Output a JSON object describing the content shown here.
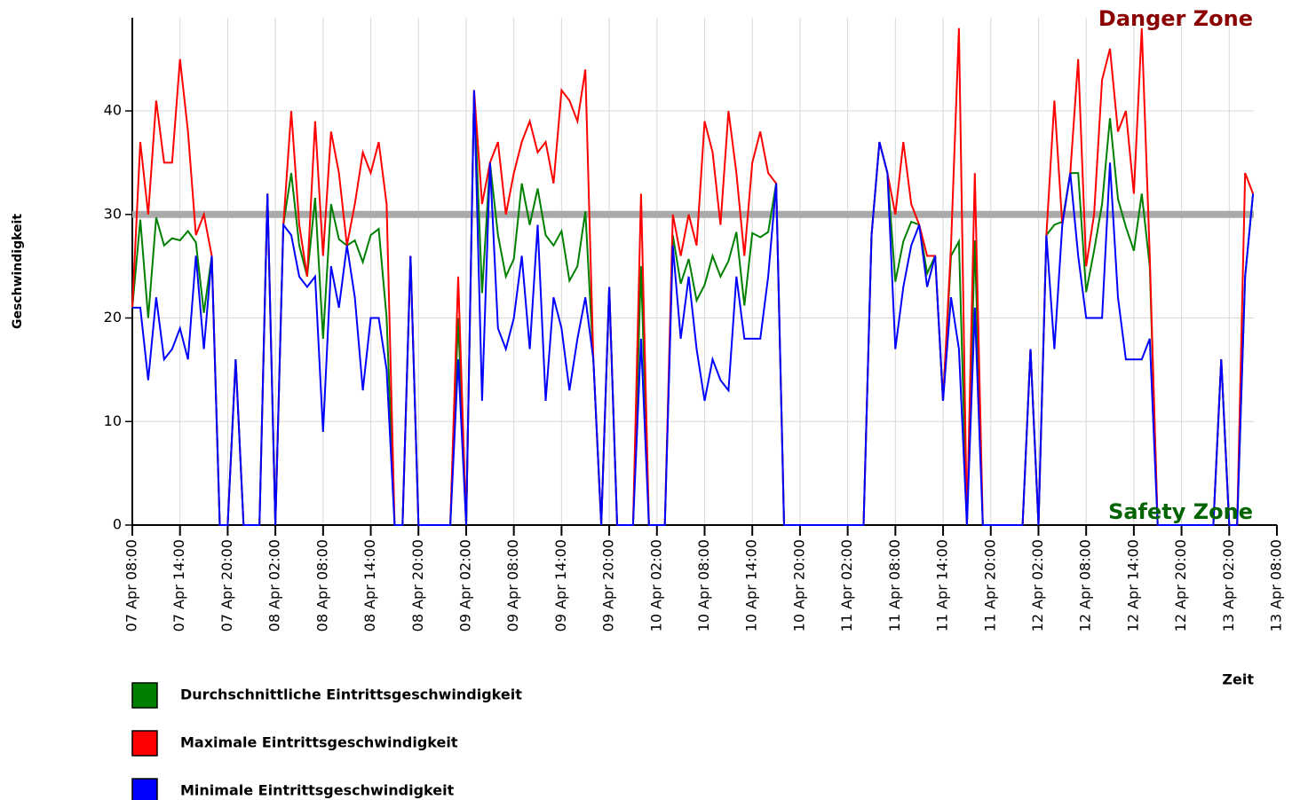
{
  "chart_data": {
    "type": "line",
    "y_label": "Geschwindigkeit",
    "x_label": "Zeit",
    "annotations": [
      {
        "text": "Danger Zone",
        "color": "#8b0000"
      },
      {
        "text": "Safety Zone",
        "color": "#006400"
      }
    ],
    "threshold": {
      "value": 30,
      "color": "#aaaaaa"
    },
    "x": [
      "07 Apr 08:00",
      "07 Apr 09:00",
      "07 Apr 10:00",
      "07 Apr 11:00",
      "07 Apr 12:00",
      "07 Apr 13:00",
      "07 Apr 14:00",
      "07 Apr 15:00",
      "07 Apr 16:00",
      "07 Apr 17:00",
      "07 Apr 18:00",
      "07 Apr 19:00",
      "07 Apr 20:00",
      "07 Apr 21:00",
      "07 Apr 22:00",
      "07 Apr 23:00",
      "08 Apr 00:00",
      "08 Apr 01:00",
      "08 Apr 02:00",
      "08 Apr 03:00",
      "08 Apr 04:00",
      "08 Apr 05:00",
      "08 Apr 06:00",
      "08 Apr 07:00",
      "08 Apr 08:00",
      "08 Apr 09:00",
      "08 Apr 10:00",
      "08 Apr 11:00",
      "08 Apr 12:00",
      "08 Apr 13:00",
      "08 Apr 14:00",
      "08 Apr 15:00",
      "08 Apr 16:00",
      "08 Apr 17:00",
      "08 Apr 18:00",
      "08 Apr 19:00",
      "08 Apr 20:00",
      "08 Apr 21:00",
      "08 Apr 22:00",
      "08 Apr 23:00",
      "09 Apr 00:00",
      "09 Apr 01:00",
      "09 Apr 02:00",
      "09 Apr 03:00",
      "09 Apr 04:00",
      "09 Apr 05:00",
      "09 Apr 06:00",
      "09 Apr 07:00",
      "09 Apr 08:00",
      "09 Apr 09:00",
      "09 Apr 10:00",
      "09 Apr 11:00",
      "09 Apr 12:00",
      "09 Apr 13:00",
      "09 Apr 14:00",
      "09 Apr 15:00",
      "09 Apr 16:00",
      "09 Apr 17:00",
      "09 Apr 18:00",
      "09 Apr 19:00",
      "09 Apr 20:00",
      "09 Apr 21:00",
      "09 Apr 22:00",
      "09 Apr 23:00",
      "10 Apr 00:00",
      "10 Apr 01:00",
      "10 Apr 02:00",
      "10 Apr 03:00",
      "10 Apr 04:00",
      "10 Apr 05:00",
      "10 Apr 06:00",
      "10 Apr 07:00",
      "10 Apr 08:00",
      "10 Apr 09:00",
      "10 Apr 10:00",
      "10 Apr 11:00",
      "10 Apr 12:00",
      "10 Apr 13:00",
      "10 Apr 14:00",
      "10 Apr 15:00",
      "10 Apr 16:00",
      "10 Apr 17:00",
      "10 Apr 18:00",
      "10 Apr 19:00",
      "10 Apr 20:00",
      "10 Apr 21:00",
      "10 Apr 22:00",
      "10 Apr 23:00",
      "11 Apr 00:00",
      "11 Apr 01:00",
      "11 Apr 02:00",
      "11 Apr 03:00",
      "11 Apr 04:00",
      "11 Apr 05:00",
      "11 Apr 06:00",
      "11 Apr 07:00",
      "11 Apr 08:00",
      "11 Apr 09:00",
      "11 Apr 10:00",
      "11 Apr 11:00",
      "11 Apr 12:00",
      "11 Apr 13:00",
      "11 Apr 14:00",
      "11 Apr 15:00",
      "11 Apr 16:00",
      "11 Apr 17:00",
      "11 Apr 18:00",
      "11 Apr 19:00",
      "11 Apr 20:00",
      "11 Apr 21:00",
      "11 Apr 22:00",
      "11 Apr 23:00",
      "12 Apr 00:00",
      "12 Apr 01:00",
      "12 Apr 02:00",
      "12 Apr 03:00",
      "12 Apr 04:00",
      "12 Apr 05:00",
      "12 Apr 06:00",
      "12 Apr 07:00",
      "12 Apr 08:00",
      "12 Apr 09:00",
      "12 Apr 10:00",
      "12 Apr 11:00",
      "12 Apr 12:00",
      "12 Apr 13:00",
      "12 Apr 14:00",
      "12 Apr 15:00",
      "12 Apr 16:00",
      "12 Apr 17:00",
      "12 Apr 18:00",
      "12 Apr 19:00",
      "12 Apr 20:00",
      "12 Apr 21:00",
      "12 Apr 22:00",
      "12 Apr 23:00",
      "13 Apr 00:00",
      "13 Apr 01:00",
      "13 Apr 02:00",
      "13 Apr 03:00",
      "13 Apr 04:00",
      "13 Apr 05:00"
    ],
    "series": [
      {
        "name": "Durchschnittliche Eintrittsgeschwindigkeit",
        "color": "#008000",
        "values": [
          21,
          29.5,
          20,
          29.7,
          27,
          27.7,
          27.5,
          28.4,
          27.3,
          20.5,
          26,
          0,
          0,
          16,
          0,
          0,
          0,
          32,
          0,
          29,
          34,
          27,
          24,
          31.6,
          18,
          31,
          27.6,
          27,
          27.5,
          25.4,
          28,
          28.6,
          20,
          0,
          0,
          26,
          0,
          0,
          0,
          0,
          0,
          20,
          0,
          42,
          22.4,
          35,
          28,
          24,
          25.7,
          33,
          29,
          32.5,
          28,
          27,
          28.4,
          23.6,
          25,
          30.3,
          16,
          0,
          23,
          0,
          0,
          0,
          25,
          0,
          0,
          0,
          28,
          23.3,
          25.7,
          21.7,
          23.2,
          26,
          24,
          25.5,
          28.3,
          21.2,
          28.2,
          27.8,
          28.3,
          33,
          0,
          0,
          0,
          0,
          0,
          0,
          0,
          0,
          0,
          0,
          0,
          28,
          37,
          34,
          23.5,
          27.4,
          29.3,
          29,
          24.3,
          26,
          12,
          26,
          27.4,
          0,
          27.5,
          0,
          0,
          0,
          0,
          0,
          0,
          17,
          0,
          28,
          29,
          29.3,
          34,
          34,
          22.5,
          26.5,
          31,
          39.3,
          31.5,
          28.8,
          26.5,
          32,
          25,
          0,
          0,
          0,
          0,
          0,
          0,
          0,
          0,
          16,
          0,
          0,
          24,
          32
        ]
      },
      {
        "name": "Maximale Eintrittsgeschwindigkeit",
        "color": "#ff0000",
        "values": [
          21,
          37,
          30,
          41,
          35,
          35,
          45,
          38,
          28,
          30,
          26,
          0,
          0,
          16,
          0,
          0,
          0,
          32,
          0,
          29,
          40,
          29,
          24,
          39,
          26,
          38,
          34,
          27,
          31,
          36,
          34,
          37,
          31,
          0,
          0,
          26,
          0,
          0,
          0,
          0,
          0,
          24,
          0,
          42,
          31,
          35,
          37,
          30,
          34,
          37,
          39,
          36,
          37,
          33,
          42,
          41,
          39,
          44,
          16,
          0,
          23,
          0,
          0,
          0,
          32,
          0,
          0,
          0,
          30,
          26,
          30,
          27,
          39,
          36,
          29,
          40,
          34,
          26,
          35,
          38,
          34,
          33,
          0,
          0,
          0,
          0,
          0,
          0,
          0,
          0,
          0,
          0,
          0,
          28,
          37,
          34,
          30,
          37,
          31,
          29,
          26,
          26,
          12,
          27,
          48,
          0,
          34,
          0,
          0,
          0,
          0,
          0,
          0,
          17,
          0,
          28,
          41,
          29,
          34,
          45,
          25,
          30,
          43,
          46,
          38,
          40,
          32,
          48,
          26,
          0,
          0,
          0,
          0,
          0,
          0,
          0,
          0,
          16,
          0,
          0,
          34,
          32
        ]
      },
      {
        "name": "Minimale Eintrittsgeschwindigkeit",
        "color": "#0000ff",
        "values": [
          21,
          21,
          14,
          22,
          16,
          17,
          19,
          16,
          26,
          17,
          26,
          0,
          0,
          16,
          0,
          0,
          0,
          32,
          0,
          29,
          28,
          24,
          23,
          24,
          9,
          25,
          21,
          27,
          22,
          13,
          20,
          20,
          15,
          0,
          0,
          26,
          0,
          0,
          0,
          0,
          0,
          16,
          0,
          42,
          12,
          35,
          19,
          17,
          20,
          26,
          17,
          29,
          12,
          22,
          19,
          13,
          18,
          22,
          16,
          0,
          23,
          0,
          0,
          0,
          18,
          0,
          0,
          0,
          27,
          18,
          24,
          17,
          12,
          16,
          14,
          13,
          24,
          18,
          18,
          18,
          24,
          33,
          0,
          0,
          0,
          0,
          0,
          0,
          0,
          0,
          0,
          0,
          0,
          28,
          37,
          34,
          17,
          23,
          27,
          29,
          23,
          26,
          12,
          22,
          17,
          0,
          21,
          0,
          0,
          0,
          0,
          0,
          0,
          17,
          0,
          28,
          17,
          29,
          34,
          26,
          20,
          20,
          20,
          35,
          22,
          16,
          16,
          16,
          18,
          0,
          0,
          0,
          0,
          0,
          0,
          0,
          0,
          16,
          0,
          0,
          24,
          32
        ]
      }
    ],
    "xlim": [
      "07 Apr 08:00",
      "13 Apr 08:00"
    ],
    "xticks": [
      "07 Apr 08:00",
      "07 Apr 14:00",
      "07 Apr 20:00",
      "08 Apr 02:00",
      "08 Apr 08:00",
      "08 Apr 14:00",
      "08 Apr 20:00",
      "09 Apr 02:00",
      "09 Apr 08:00",
      "09 Apr 14:00",
      "09 Apr 20:00",
      "10 Apr 02:00",
      "10 Apr 08:00",
      "10 Apr 14:00",
      "10 Apr 20:00",
      "11 Apr 02:00",
      "11 Apr 08:00",
      "11 Apr 14:00",
      "11 Apr 20:00",
      "12 Apr 02:00",
      "12 Apr 08:00",
      "12 Apr 14:00",
      "12 Apr 20:00",
      "13 Apr 02:00",
      "13 Apr 08:00"
    ],
    "ylim": [
      0,
      49
    ],
    "yticks": [
      0,
      10,
      20,
      30,
      40
    ],
    "grid": true
  }
}
